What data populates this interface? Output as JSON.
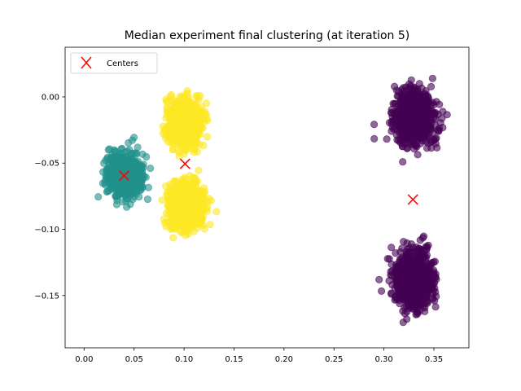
{
  "chart_data": {
    "type": "scatter",
    "title": "Median experiment final clustering (at iteration 5)",
    "xlabel": "",
    "ylabel": "",
    "xlim": [
      -0.019,
      0.385
    ],
    "ylim": [
      -0.1895,
      0.0375
    ],
    "x_ticks": [
      0.0,
      0.05,
      0.1,
      0.15,
      0.2,
      0.25,
      0.3,
      0.35
    ],
    "x_tick_labels": [
      "0.00",
      "0.05",
      "0.10",
      "0.15",
      "0.20",
      "0.25",
      "0.30",
      "0.35"
    ],
    "y_ticks": [
      0.0,
      -0.05,
      -0.1,
      -0.15
    ],
    "y_tick_labels": [
      "0.00",
      "−0.05",
      "−0.10",
      "−0.15"
    ],
    "grid": false,
    "legend": {
      "placement": "top-left",
      "entries": [
        "Centers"
      ]
    },
    "marker_alpha": 0.6,
    "clusters": [
      {
        "color": "#440154",
        "center": [
          0.33,
          -0.0155
        ],
        "spread": [
          0.0155,
          0.0155
        ],
        "count": 900
      },
      {
        "color": "#440154",
        "center": [
          0.329,
          -0.138
        ],
        "spread": [
          0.0155,
          0.0165
        ],
        "count": 900
      },
      {
        "color": "#21918c",
        "center": [
          0.04,
          -0.0595
        ],
        "spread": [
          0.0145,
          0.0125
        ],
        "count": 800
      },
      {
        "color": "#fde725",
        "center": [
          0.1,
          -0.0195
        ],
        "spread": [
          0.0125,
          0.0135
        ],
        "count": 800
      },
      {
        "color": "#fde725",
        "center": [
          0.102,
          -0.0825
        ],
        "spread": [
          0.0135,
          0.0135
        ],
        "count": 800
      }
    ],
    "centers": {
      "name": "Centers",
      "color": "#ff0000",
      "marker": "x",
      "points": [
        {
          "x": 0.04,
          "y": -0.0595
        },
        {
          "x": 0.101,
          "y": -0.0505
        },
        {
          "x": 0.329,
          "y": -0.0775
        }
      ]
    }
  }
}
